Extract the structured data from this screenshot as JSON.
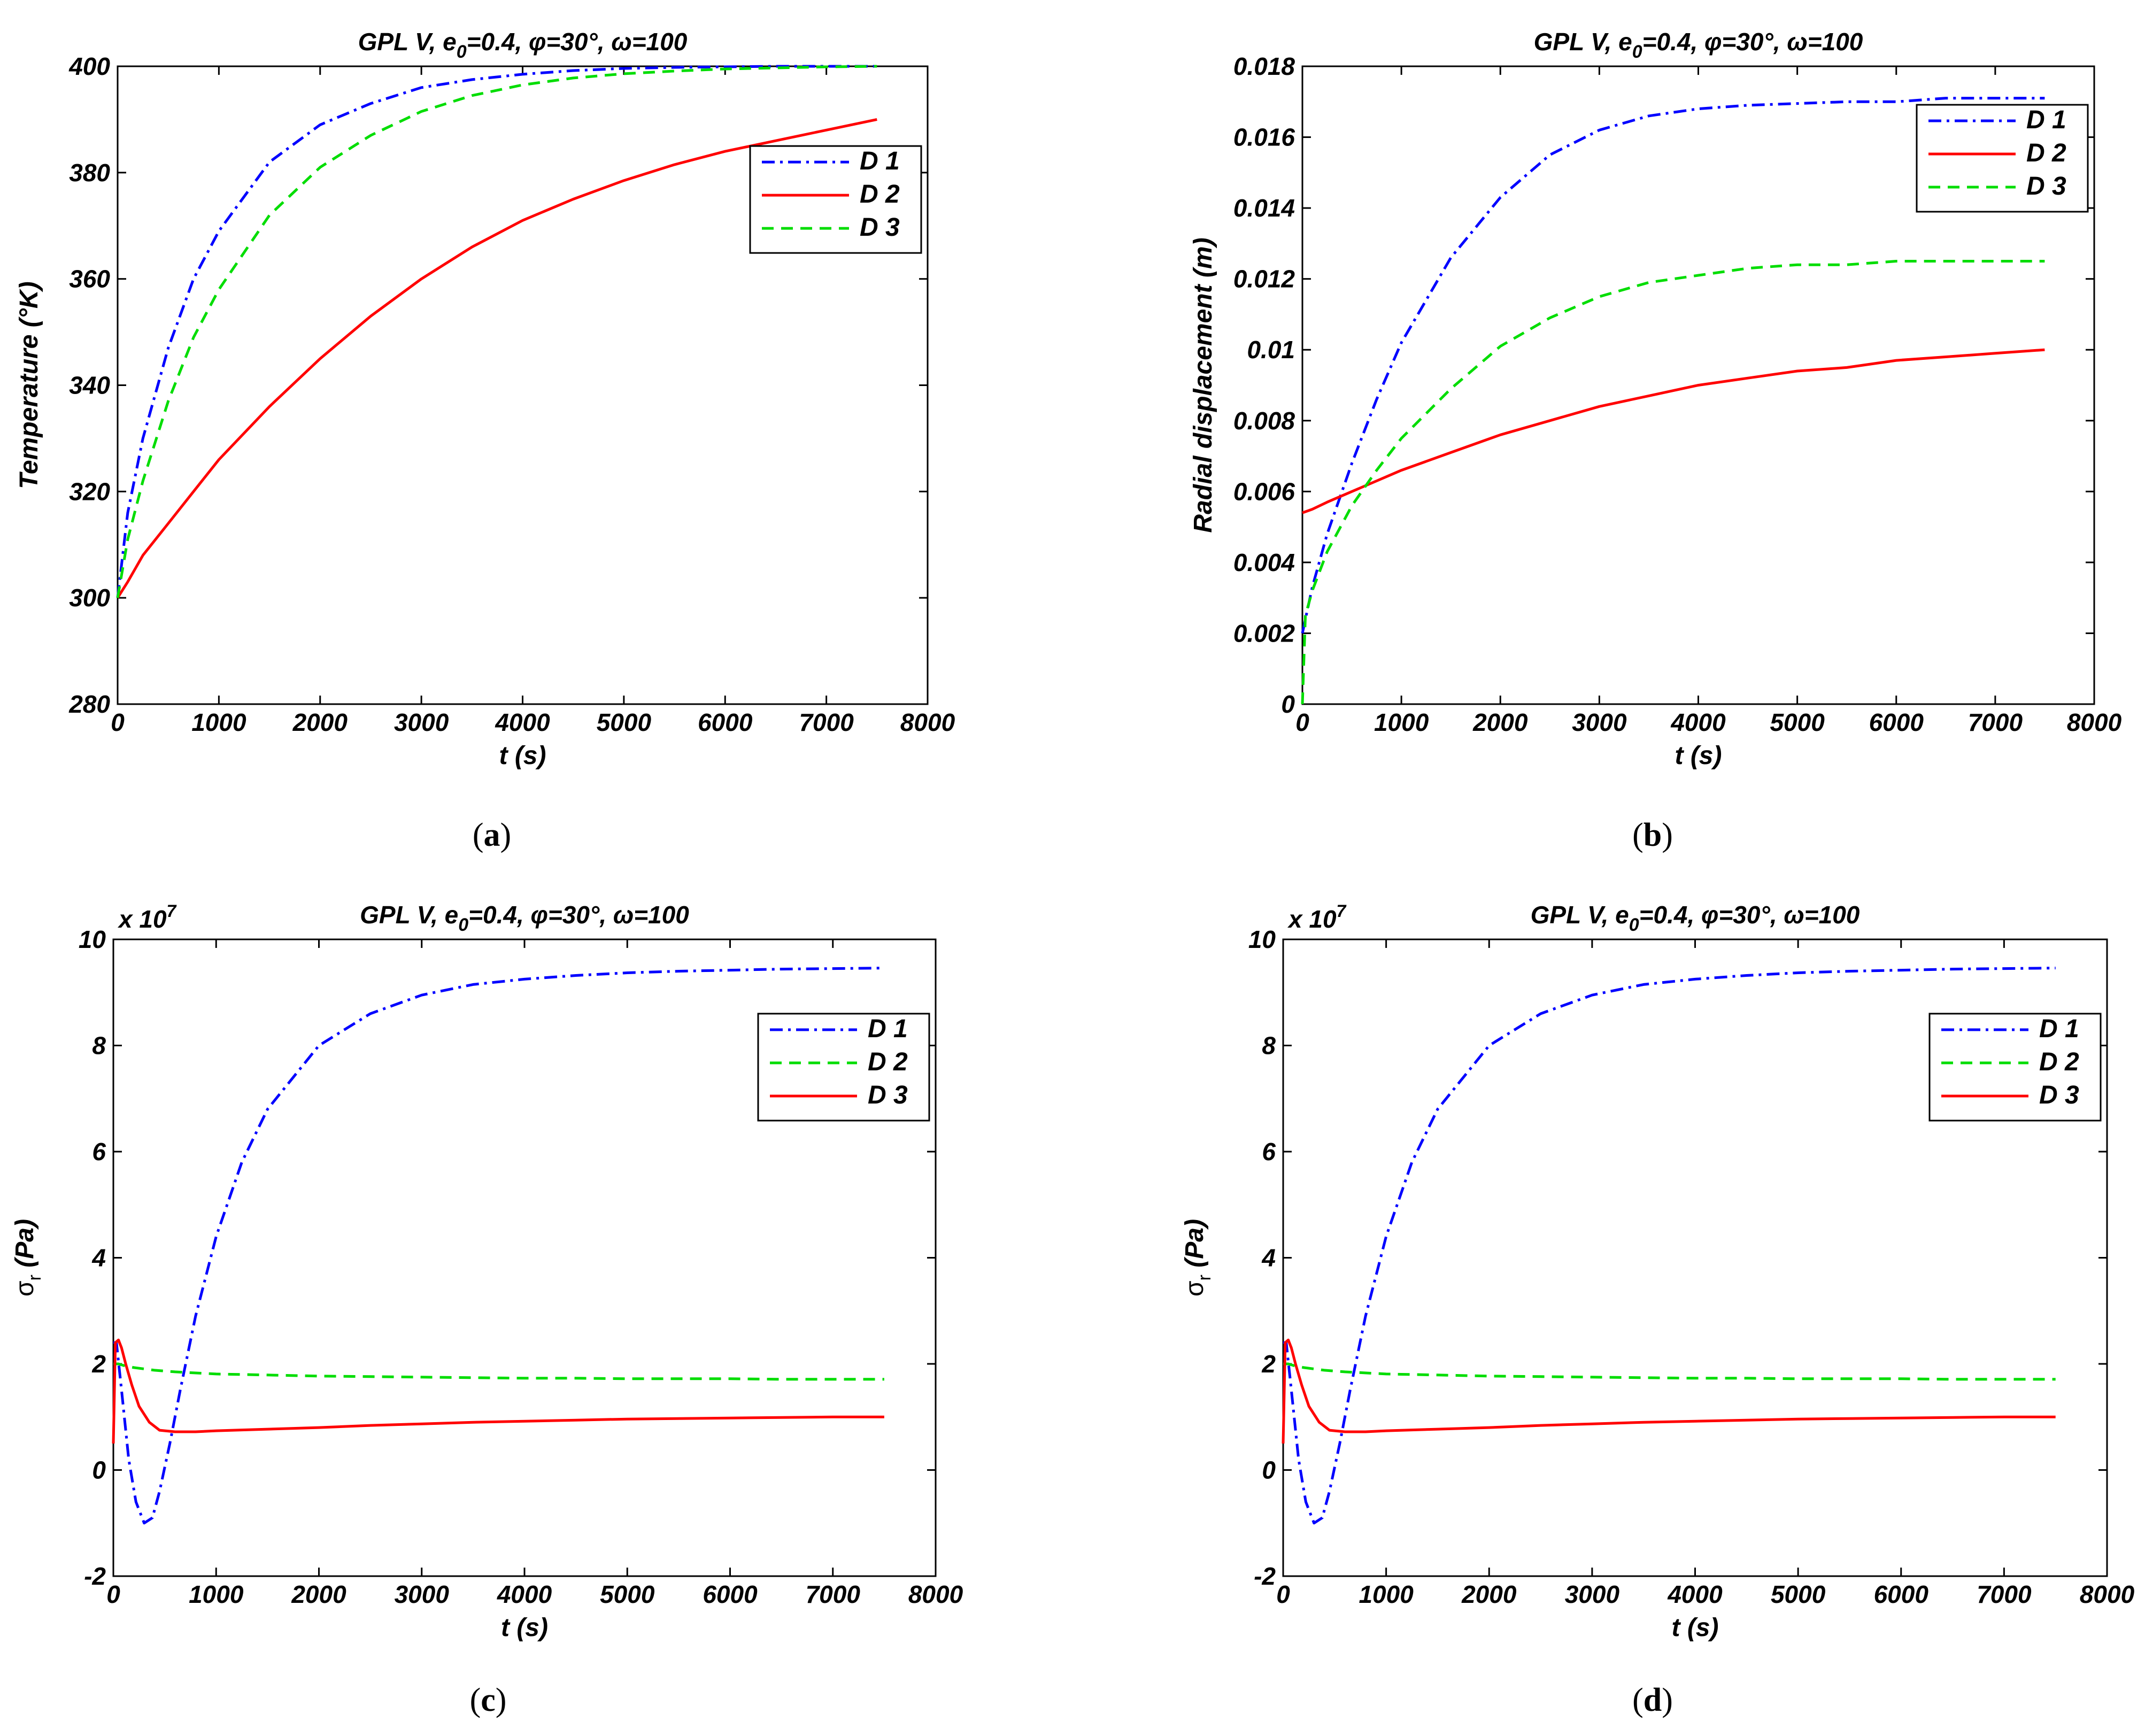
{
  "figure": {
    "colors": {
      "D1": "#0000ff",
      "D2_red": "#ff0000",
      "D3_green": "#00dd00"
    }
  },
  "chart_data": [
    {
      "id": "a",
      "type": "line",
      "caption": "a",
      "title": {
        "prefix": "GPL V, e",
        "sub": "0",
        "suffix": "=0.4, φ=30°, ω=100"
      },
      "xlabel": "t (s)",
      "ylabel": "Temperature (°K)",
      "xlim": [
        0,
        8000
      ],
      "ylim": [
        280,
        400
      ],
      "xticks": [
        0,
        1000,
        2000,
        3000,
        4000,
        5000,
        6000,
        7000,
        8000
      ],
      "yticks": [
        280,
        300,
        320,
        340,
        360,
        380,
        400
      ],
      "tick_labels_y": [
        "280",
        "300",
        "320",
        "340",
        "360",
        "380",
        "400"
      ],
      "tick_labels_x": [
        "0",
        "1000",
        "2000",
        "3000",
        "4000",
        "5000",
        "6000",
        "7000",
        "8000"
      ],
      "multiplier": "",
      "legend_position": "top-right",
      "series": [
        {
          "name": "D 1",
          "style": "dashdot",
          "color": "#0000ff",
          "x": [
            0,
            100,
            250,
            500,
            750,
            1000,
            1500,
            2000,
            2500,
            3000,
            3500,
            4000,
            4500,
            5000,
            5500,
            6000,
            6500,
            7000,
            7500
          ],
          "y": [
            300,
            316,
            330,
            347,
            360,
            369,
            382,
            389,
            393,
            396,
            397.5,
            398.5,
            399.2,
            399.6,
            399.8,
            399.9,
            400,
            400,
            400
          ]
        },
        {
          "name": "D 2",
          "style": "solid",
          "color": "#ff0000",
          "x": [
            0,
            100,
            250,
            500,
            750,
            1000,
            1500,
            2000,
            2500,
            3000,
            3500,
            4000,
            4500,
            5000,
            5500,
            6000,
            6500,
            7000,
            7500
          ],
          "y": [
            300,
            303,
            308,
            314,
            320,
            326,
            336,
            345,
            353,
            360,
            366,
            371,
            375,
            378.5,
            381.5,
            384,
            386,
            388,
            390
          ]
        },
        {
          "name": "D 3",
          "style": "dashed",
          "color": "#00dd00",
          "x": [
            0,
            100,
            250,
            500,
            750,
            1000,
            1500,
            2000,
            2500,
            3000,
            3500,
            4000,
            4500,
            5000,
            5500,
            6000,
            6500,
            7000,
            7500
          ],
          "y": [
            300,
            311,
            322,
            337,
            349,
            358,
            372,
            381,
            387,
            391.5,
            394.5,
            396.5,
            397.8,
            398.6,
            399.1,
            399.5,
            399.7,
            399.9,
            400
          ]
        }
      ]
    },
    {
      "id": "b",
      "type": "line",
      "caption": "b",
      "title": {
        "prefix": "GPL V, e",
        "sub": "0",
        "suffix": "=0.4, φ=30°, ω=100"
      },
      "xlabel": "t (s)",
      "ylabel": "Radial displacement (m)",
      "xlim": [
        0,
        8000
      ],
      "ylim": [
        0,
        0.018
      ],
      "xticks": [
        0,
        1000,
        2000,
        3000,
        4000,
        5000,
        6000,
        7000,
        8000
      ],
      "yticks": [
        0,
        0.002,
        0.004,
        0.006,
        0.008,
        0.01,
        0.012,
        0.014,
        0.016,
        0.018
      ],
      "tick_labels_y": [
        "0",
        "0.002",
        "0.004",
        "0.006",
        "0.008",
        "0.01",
        "0.012",
        "0.014",
        "0.016",
        "0.018"
      ],
      "tick_labels_x": [
        "0",
        "1000",
        "2000",
        "3000",
        "4000",
        "5000",
        "6000",
        "7000",
        "8000"
      ],
      "multiplier": "",
      "legend_position": "top-right",
      "series": [
        {
          "name": "D 1",
          "style": "dashdot",
          "color": "#0000ff",
          "x": [
            0,
            100,
            250,
            500,
            750,
            1000,
            1500,
            2000,
            2500,
            3000,
            3500,
            4000,
            4500,
            5000,
            5500,
            6000,
            6500,
            7000,
            7500
          ],
          "y": [
            0.002,
            0.0033,
            0.0048,
            0.0068,
            0.0086,
            0.0102,
            0.0126,
            0.0143,
            0.0155,
            0.0162,
            0.0166,
            0.0168,
            0.0169,
            0.01695,
            0.017,
            0.017,
            0.0171,
            0.0171,
            0.0171
          ]
        },
        {
          "name": "D 2",
          "style": "solid",
          "color": "#ff0000",
          "x": [
            0,
            100,
            250,
            500,
            750,
            1000,
            1500,
            2000,
            2500,
            3000,
            3500,
            4000,
            4500,
            5000,
            5500,
            6000,
            6500,
            7000,
            7500
          ],
          "y": [
            0.0054,
            0.0055,
            0.0057,
            0.006,
            0.0063,
            0.0066,
            0.0071,
            0.0076,
            0.008,
            0.0084,
            0.0087,
            0.009,
            0.0092,
            0.0094,
            0.0095,
            0.0097,
            0.0098,
            0.0099,
            0.01
          ]
        },
        {
          "name": "D 3",
          "style": "dashed",
          "color": "#00dd00",
          "x": [
            0,
            30,
            100,
            250,
            500,
            750,
            1000,
            1500,
            2000,
            2500,
            3000,
            3500,
            4000,
            4500,
            5000,
            5500,
            6000,
            6500,
            7000,
            7500
          ],
          "y": [
            0,
            0.0025,
            0.0032,
            0.0043,
            0.0056,
            0.0066,
            0.0075,
            0.0089,
            0.0101,
            0.0109,
            0.0115,
            0.0119,
            0.0121,
            0.0123,
            0.0124,
            0.0124,
            0.0125,
            0.0125,
            0.0125,
            0.0125
          ]
        }
      ]
    },
    {
      "id": "c",
      "type": "line",
      "caption": "c",
      "title": {
        "prefix": "GPL V, e",
        "sub": "0",
        "suffix": "=0.4, φ=30°, ω=100"
      },
      "xlabel": "t (s)",
      "ylabel": "σ",
      "ylabel_sub": "r",
      "ylabel_suffix": " (Pa)",
      "xlim": [
        0,
        8000
      ],
      "ylim": [
        -2,
        10
      ],
      "xticks": [
        0,
        1000,
        2000,
        3000,
        4000,
        5000,
        6000,
        7000,
        8000
      ],
      "yticks": [
        -2,
        0,
        2,
        4,
        6,
        8,
        10
      ],
      "tick_labels_y": [
        "-2",
        "0",
        "2",
        "4",
        "6",
        "8",
        "10"
      ],
      "tick_labels_x": [
        "0",
        "1000",
        "2000",
        "3000",
        "4000",
        "5000",
        "6000",
        "7000",
        "8000"
      ],
      "multiplier": "x 10",
      "multiplier_exp": "7",
      "legend_position": "top-right",
      "series": [
        {
          "name": "D 1",
          "style": "dashdot",
          "color": "#0000ff",
          "x": [
            0,
            30,
            80,
            150,
            220,
            300,
            380,
            450,
            550,
            650,
            800,
            1000,
            1250,
            1500,
            2000,
            2500,
            3000,
            3500,
            4000,
            4500,
            5000,
            5500,
            6000,
            6500,
            7000,
            7500
          ],
          "y": [
            2.4,
            2.4,
            1.5,
            0.2,
            -0.6,
            -1.0,
            -0.9,
            -0.4,
            0.5,
            1.5,
            2.9,
            4.4,
            5.8,
            6.8,
            8.0,
            8.6,
            8.95,
            9.15,
            9.25,
            9.32,
            9.37,
            9.4,
            9.42,
            9.44,
            9.45,
            9.46
          ]
        },
        {
          "name": "D 2",
          "style": "dashed",
          "color": "#00dd00",
          "x": [
            0,
            50,
            100,
            200,
            400,
            600,
            1000,
            1500,
            2000,
            2500,
            3000,
            3500,
            4000,
            4500,
            5000,
            5500,
            6000,
            6500,
            7000,
            7500
          ],
          "y": [
            2.0,
            2.0,
            1.97,
            1.93,
            1.88,
            1.85,
            1.81,
            1.79,
            1.77,
            1.76,
            1.75,
            1.74,
            1.73,
            1.73,
            1.72,
            1.72,
            1.72,
            1.71,
            1.71,
            1.71
          ]
        },
        {
          "name": "D 3",
          "style": "solid",
          "color": "#ff0000",
          "x": [
            0,
            20,
            50,
            80,
            120,
            180,
            250,
            350,
            450,
            600,
            800,
            1000,
            1500,
            2000,
            2500,
            3000,
            3500,
            4000,
            4500,
            5000,
            5500,
            6000,
            6500,
            7000,
            7500
          ],
          "y": [
            0.5,
            2.4,
            2.45,
            2.3,
            2.0,
            1.6,
            1.2,
            0.9,
            0.75,
            0.72,
            0.72,
            0.74,
            0.77,
            0.8,
            0.84,
            0.87,
            0.9,
            0.92,
            0.94,
            0.96,
            0.97,
            0.98,
            0.99,
            1.0,
            1.0
          ]
        }
      ]
    },
    {
      "id": "d",
      "type": "line",
      "caption": "d",
      "title": {
        "prefix": "GPL V, e",
        "sub": "0",
        "suffix": "=0.4, φ=30°, ω=100"
      },
      "xlabel": "t (s)",
      "ylabel": "σ",
      "ylabel_sub": "r",
      "ylabel_suffix": " (Pa)",
      "xlim": [
        0,
        8000
      ],
      "ylim": [
        -2,
        10
      ],
      "xticks": [
        0,
        1000,
        2000,
        3000,
        4000,
        5000,
        6000,
        7000,
        8000
      ],
      "yticks": [
        -2,
        0,
        2,
        4,
        6,
        8,
        10
      ],
      "tick_labels_y": [
        "-2",
        "0",
        "2",
        "4",
        "6",
        "8",
        "10"
      ],
      "tick_labels_x": [
        "0",
        "1000",
        "2000",
        "3000",
        "4000",
        "5000",
        "6000",
        "7000",
        "8000"
      ],
      "multiplier": "x 10",
      "multiplier_exp": "7",
      "legend_position": "top-right",
      "series": [
        {
          "name": "D 1",
          "style": "dashdot",
          "color": "#0000ff",
          "x": [
            0,
            30,
            80,
            150,
            220,
            300,
            380,
            450,
            550,
            650,
            800,
            1000,
            1250,
            1500,
            2000,
            2500,
            3000,
            3500,
            4000,
            4500,
            5000,
            5500,
            6000,
            6500,
            7000,
            7500
          ],
          "y": [
            2.4,
            2.4,
            1.5,
            0.2,
            -0.6,
            -1.0,
            -0.9,
            -0.4,
            0.5,
            1.5,
            2.9,
            4.4,
            5.8,
            6.8,
            8.0,
            8.6,
            8.95,
            9.15,
            9.25,
            9.32,
            9.37,
            9.4,
            9.42,
            9.44,
            9.45,
            9.46
          ]
        },
        {
          "name": "D 2",
          "style": "dashed",
          "color": "#00dd00",
          "x": [
            0,
            50,
            100,
            200,
            400,
            600,
            1000,
            1500,
            2000,
            2500,
            3000,
            3500,
            4000,
            4500,
            5000,
            5500,
            6000,
            6500,
            7000,
            7500
          ],
          "y": [
            2.0,
            2.0,
            1.97,
            1.93,
            1.88,
            1.85,
            1.81,
            1.79,
            1.77,
            1.76,
            1.75,
            1.74,
            1.73,
            1.73,
            1.72,
            1.72,
            1.72,
            1.71,
            1.71,
            1.71
          ]
        },
        {
          "name": "D 3",
          "style": "solid",
          "color": "#ff0000",
          "x": [
            0,
            20,
            50,
            80,
            120,
            180,
            250,
            350,
            450,
            600,
            800,
            1000,
            1500,
            2000,
            2500,
            3000,
            3500,
            4000,
            4500,
            5000,
            5500,
            6000,
            6500,
            7000,
            7500
          ],
          "y": [
            0.5,
            2.4,
            2.45,
            2.3,
            2.0,
            1.6,
            1.2,
            0.9,
            0.75,
            0.72,
            0.72,
            0.74,
            0.77,
            0.8,
            0.84,
            0.87,
            0.9,
            0.92,
            0.94,
            0.96,
            0.97,
            0.98,
            0.99,
            1.0,
            1.0
          ]
        }
      ]
    }
  ]
}
